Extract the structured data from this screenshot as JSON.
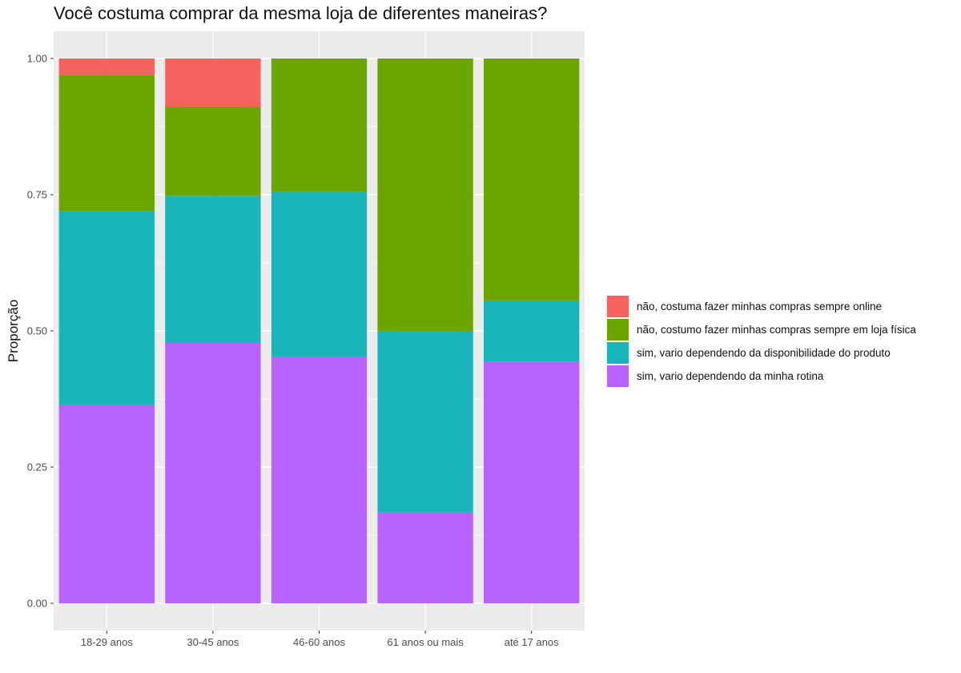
{
  "chart_data": {
    "type": "bar",
    "stacked": true,
    "title": "Você costuma comprar da mesma loja de diferentes maneiras?",
    "xlabel": "",
    "ylabel": "Proporção",
    "ylim": [
      0,
      1
    ],
    "yticks": [
      "0.00",
      "0.25",
      "0.50",
      "0.75",
      "1.00"
    ],
    "grid": true,
    "legend_position": "right",
    "categories": [
      "18-29 anos",
      "30-45 anos",
      "46-60 anos",
      "61 anos ou mais",
      "até 17 anos"
    ],
    "series": [
      {
        "name": "sim, vario dependendo da minha rotina",
        "color": "#B863FF",
        "values": [
          0.364,
          0.478,
          0.453,
          0.167,
          0.444
        ]
      },
      {
        "name": "sim, vario dependendo da disponibilidade do produto",
        "color": "#1AB5BA",
        "values": [
          0.356,
          0.27,
          0.302,
          0.333,
          0.112
        ]
      },
      {
        "name": "não, costumo fazer minhas compras sempre em loja física",
        "color": "#6CA500",
        "values": [
          0.25,
          0.163,
          0.245,
          0.5,
          0.444
        ]
      },
      {
        "name": "não, costuma fazer minhas compras sempre online",
        "color": "#F5635E",
        "values": [
          0.03,
          0.089,
          0.0,
          0.0,
          0.0
        ]
      }
    ],
    "legend_order": [
      "não, costuma fazer minhas compras sempre online",
      "não, costumo fazer minhas compras sempre em loja física",
      "sim, vario dependendo da disponibilidade do produto",
      "sim, vario dependendo da minha rotina"
    ]
  }
}
